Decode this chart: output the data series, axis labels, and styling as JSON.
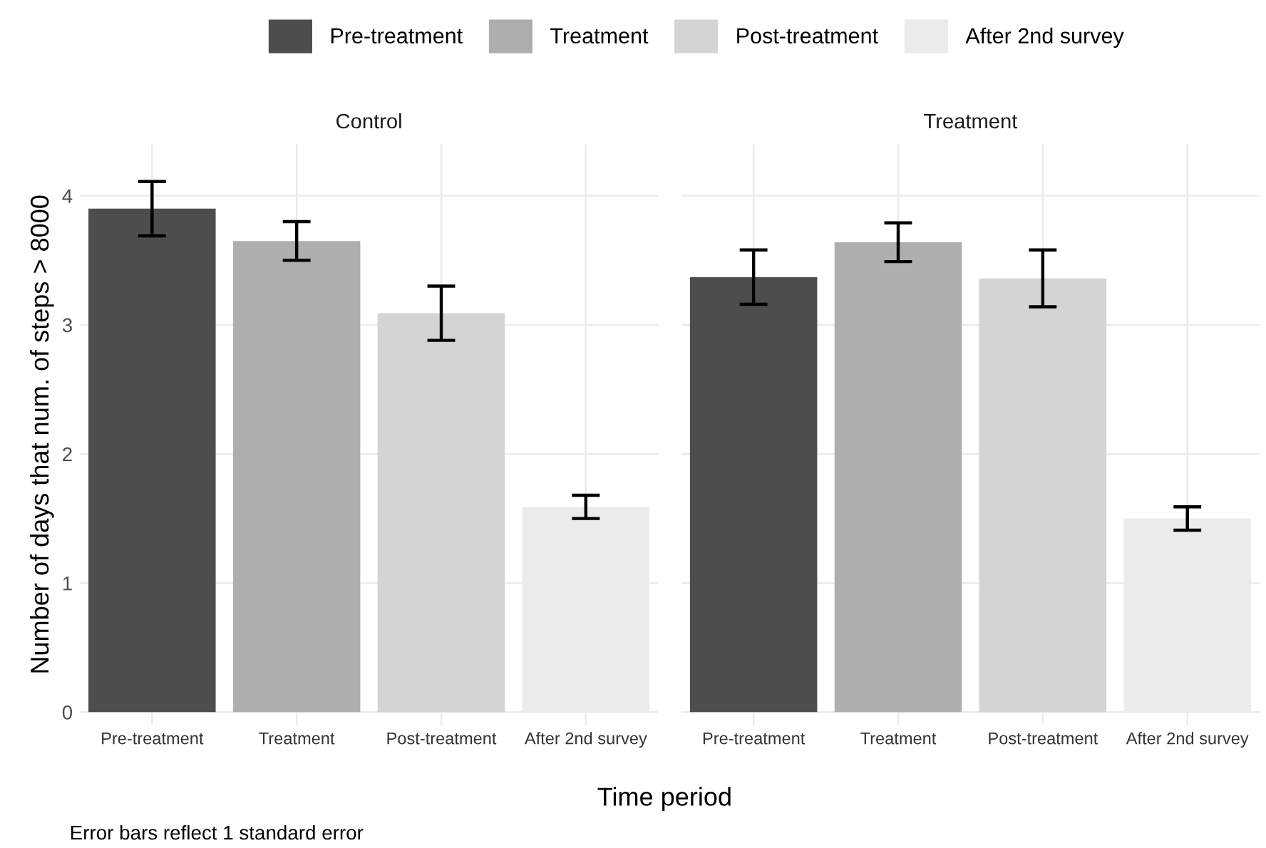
{
  "chart_data": [
    {
      "type": "bar",
      "title": "Control",
      "xlabel": "Time period",
      "ylabel": "Number of days that num. of steps > 8000",
      "categories": [
        "Pre-treatment",
        "Treatment",
        "Post-treatment",
        "After 2nd survey"
      ],
      "series": [
        {
          "name": "Pre-treatment",
          "color": "#4d4d4d",
          "values": [
            3.9,
            null,
            null,
            null
          ],
          "errors": [
            0.21,
            null,
            null,
            null
          ]
        },
        {
          "name": "Treatment",
          "color": "#aeaeae",
          "values": [
            null,
            3.65,
            null,
            null
          ],
          "errors": [
            null,
            0.15,
            null,
            null
          ]
        },
        {
          "name": "Post-treatment",
          "color": "#d4d4d4",
          "values": [
            null,
            null,
            3.09,
            null
          ],
          "errors": [
            null,
            null,
            0.21,
            null
          ]
        },
        {
          "name": "After 2nd survey",
          "color": "#ebebeb",
          "values": [
            null,
            null,
            null,
            1.59
          ],
          "errors": [
            null,
            null,
            null,
            0.09
          ]
        }
      ],
      "ylim": [
        -0.1,
        4.4
      ],
      "yticks": [
        0,
        1,
        2,
        3,
        4
      ],
      "grid": true,
      "legend": "top",
      "annotations": [
        "Error bars reflect 1 standard error"
      ]
    },
    {
      "type": "bar",
      "title": "Treatment",
      "categories": [
        "Pre-treatment",
        "Treatment",
        "Post-treatment",
        "After 2nd survey"
      ],
      "series": [
        {
          "color": "#4d4d4d",
          "values": [
            3.37,
            null,
            null,
            null
          ],
          "errors": [
            0.21,
            null,
            null,
            null
          ]
        },
        {
          "color": "#aeaeae",
          "values": [
            null,
            3.64,
            null,
            null
          ],
          "errors": [
            null,
            0.15,
            null,
            null
          ]
        },
        {
          "color": "#d4d4d4",
          "values": [
            null,
            null,
            3.36,
            null
          ],
          "errors": [
            null,
            null,
            0.22,
            null
          ]
        },
        {
          "color": "#ebebeb",
          "values": [
            null,
            null,
            null,
            1.5
          ],
          "errors": [
            null,
            null,
            null,
            0.09
          ]
        }
      ],
      "ylim": [
        -0.1,
        4.4
      ],
      "yticks": [
        0,
        1,
        2,
        3,
        4
      ],
      "grid": true,
      "tick_labels": "x"
    }
  ]
}
